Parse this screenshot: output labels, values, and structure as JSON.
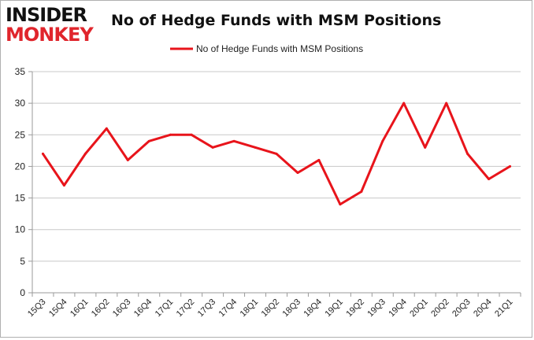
{
  "logo": {
    "line1": "INSIDER",
    "line2": "MONKEY"
  },
  "chart_data": {
    "type": "line",
    "title": "No of Hedge Funds with MSM Positions",
    "xlabel": "",
    "ylabel": "",
    "categories": [
      "15Q3",
      "15Q4",
      "16Q1",
      "16Q2",
      "16Q3",
      "16Q4",
      "17Q1",
      "17Q2",
      "17Q3",
      "17Q4",
      "18Q1",
      "18Q2",
      "18Q3",
      "18Q4",
      "19Q1",
      "19Q2",
      "19Q3",
      "19Q4",
      "20Q1",
      "20Q2",
      "20Q3",
      "20Q4",
      "21Q1"
    ],
    "series": [
      {
        "name": "No of Hedge Funds with MSM Positions",
        "values": [
          22,
          17,
          22,
          26,
          21,
          24,
          25,
          25,
          23,
          24,
          23,
          22,
          19,
          21,
          14,
          16,
          24,
          30,
          23,
          30,
          22,
          18,
          20
        ]
      }
    ],
    "ylim": [
      0,
      35
    ],
    "yticks": [
      0,
      5,
      10,
      15,
      20,
      25,
      30,
      35
    ],
    "grid": true,
    "legend": "top-center",
    "colors": {
      "line": "#e8141b",
      "grid": "#c8c8c8",
      "axis": "#9a9a9a"
    }
  }
}
